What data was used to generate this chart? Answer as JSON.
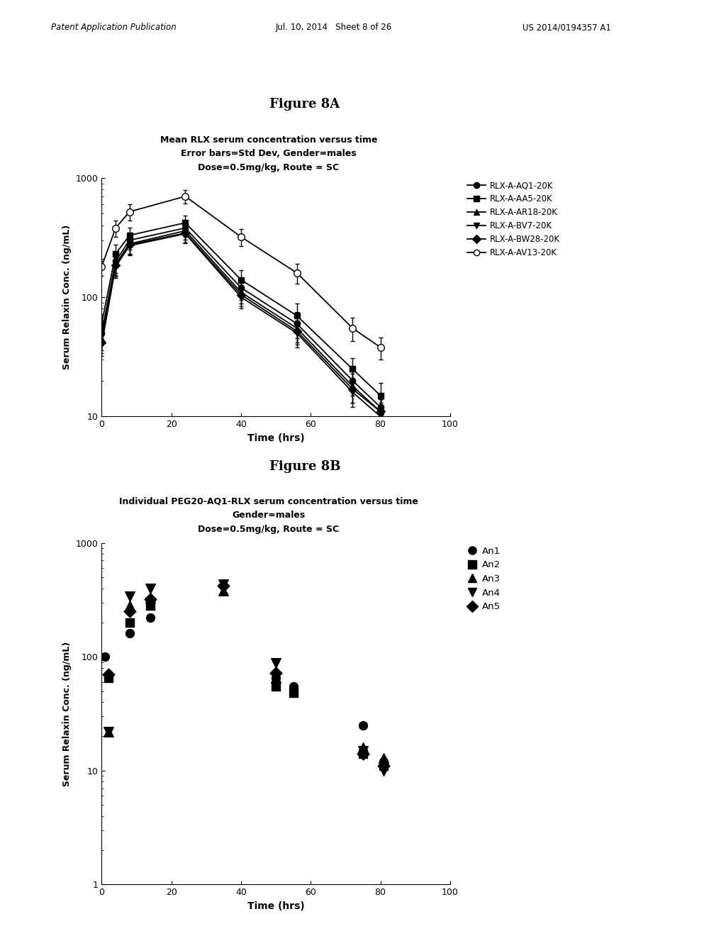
{
  "fig_title_A": "Figure 8A",
  "fig_title_B": "Figure 8B",
  "plot_title_A_line1": "Mean RLX serum concentration versus time",
  "plot_title_A_line2": "Error bars=Std Dev, Gender=males",
  "plot_title_A_line3": "Dose=0.5mg/kg, Route = SC",
  "plot_title_B_line1": "Individual PEG20-AQ1-RLX serum concentration versus time",
  "plot_title_B_line2": "Gender=males",
  "plot_title_B_line3": "Dose=0.5mg/kg, Route = SC",
  "ylabel": "Serum Relaxin Conc. (ng/mL)",
  "xlabel": "Time (hrs)",
  "series_A": [
    {
      "label": "RLX-A-AQ1-20K",
      "marker": "o",
      "markersize": 6,
      "linestyle": "-",
      "fillstyle": "full",
      "x": [
        0,
        4,
        8,
        24,
        40,
        56,
        72,
        80
      ],
      "y": [
        50,
        200,
        300,
        380,
        120,
        60,
        20,
        12
      ],
      "yerr": [
        10,
        40,
        50,
        60,
        25,
        15,
        5,
        3
      ]
    },
    {
      "label": "RLX-A-AA5-20K",
      "marker": "s",
      "markersize": 6,
      "linestyle": "-",
      "fillstyle": "full",
      "x": [
        0,
        4,
        8,
        24,
        40,
        56,
        72,
        80
      ],
      "y": [
        60,
        230,
        330,
        420,
        140,
        70,
        25,
        15
      ],
      "yerr": [
        12,
        45,
        55,
        65,
        28,
        18,
        6,
        4
      ]
    },
    {
      "label": "RLX-A-AR18-20K",
      "marker": "^",
      "markersize": 6,
      "linestyle": "-",
      "fillstyle": "full",
      "x": [
        0,
        4,
        8,
        24,
        40,
        56,
        72,
        80
      ],
      "y": [
        45,
        190,
        280,
        360,
        110,
        55,
        18,
        11
      ],
      "yerr": [
        9,
        38,
        48,
        58,
        22,
        13,
        5,
        3
      ]
    },
    {
      "label": "RLX-A-BV7-20K",
      "marker": "v",
      "markersize": 6,
      "linestyle": "-",
      "fillstyle": "full",
      "x": [
        0,
        4,
        8,
        24,
        40,
        56,
        72,
        80
      ],
      "y": [
        40,
        180,
        270,
        340,
        100,
        50,
        16,
        10
      ],
      "yerr": [
        8,
        35,
        45,
        55,
        20,
        12,
        4,
        3
      ]
    },
    {
      "label": "RLX-A-BW28-20K",
      "marker": "D",
      "markersize": 6,
      "linestyle": "-",
      "fillstyle": "full",
      "x": [
        0,
        4,
        8,
        24,
        40,
        56,
        72,
        80
      ],
      "y": [
        42,
        185,
        275,
        345,
        105,
        52,
        17,
        11
      ],
      "yerr": [
        8,
        36,
        46,
        56,
        21,
        12,
        4,
        3
      ]
    },
    {
      "label": "RLX-A-AV13-20K",
      "marker": "o",
      "markersize": 7,
      "linestyle": "-",
      "fillstyle": "none",
      "x": [
        0,
        4,
        8,
        24,
        40,
        56,
        72,
        80
      ],
      "y": [
        180,
        380,
        520,
        700,
        320,
        160,
        55,
        38
      ],
      "yerr": [
        30,
        60,
        80,
        90,
        50,
        30,
        12,
        8
      ]
    }
  ],
  "series_B": [
    {
      "label": "An1",
      "marker": "o",
      "markersize": 7,
      "x": [
        1,
        8,
        14,
        50,
        55,
        75,
        81
      ],
      "y": [
        100,
        160,
        220,
        65,
        55,
        25,
        12
      ]
    },
    {
      "label": "An2",
      "marker": "s",
      "markersize": 7,
      "x": [
        2,
        8,
        14,
        50,
        55,
        75,
        81
      ],
      "y": [
        65,
        200,
        280,
        55,
        48,
        14,
        11
      ]
    },
    {
      "label": "An3",
      "marker": "^",
      "markersize": 8,
      "x": [
        2,
        8,
        14,
        35,
        50,
        75,
        81
      ],
      "y": [
        22,
        280,
        330,
        380,
        65,
        16,
        13
      ]
    },
    {
      "label": "An4",
      "marker": "v",
      "markersize": 8,
      "x": [
        2,
        8,
        14,
        35,
        50,
        75,
        81
      ],
      "y": [
        22,
        340,
        400,
        430,
        88,
        15,
        10
      ]
    },
    {
      "label": "An5",
      "marker": "D",
      "markersize": 7,
      "x": [
        2,
        8,
        14,
        35,
        50,
        75,
        81
      ],
      "y": [
        70,
        250,
        320,
        420,
        72,
        14,
        11
      ]
    }
  ],
  "color": "black",
  "background_color": "white",
  "xlim_A": [
    0,
    100
  ],
  "ylim_A_log": [
    10,
    1000
  ],
  "xlim_B": [
    0,
    100
  ],
  "ylim_B_log": [
    1,
    1000
  ],
  "xticks": [
    0,
    20,
    40,
    60,
    80,
    100
  ],
  "header_left": "Patent Application Publication",
  "header_mid": "Jul. 10, 2014   Sheet 8 of 26",
  "header_right": "US 2014/0194357 A1"
}
